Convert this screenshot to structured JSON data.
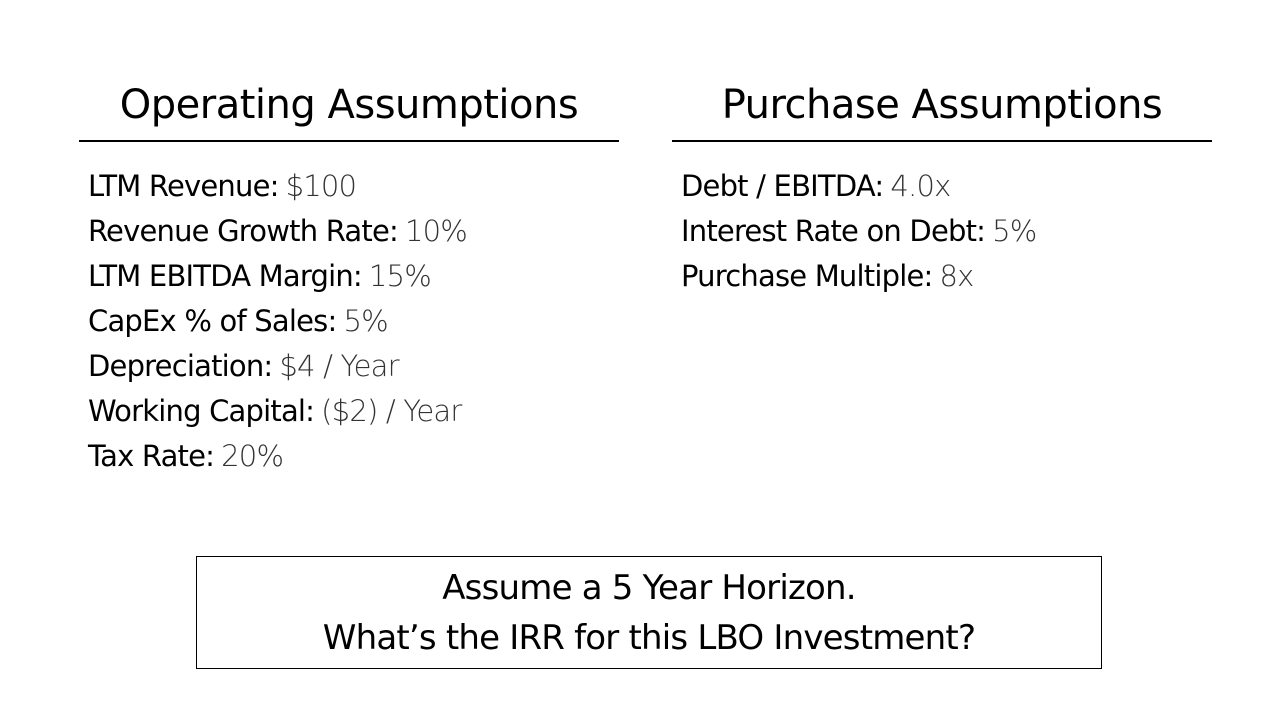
{
  "sections": [
    {
      "title": "Operating Assumptions",
      "items": [
        {
          "label": "LTM Revenue:",
          "value": "$100"
        },
        {
          "label": "Revenue Growth Rate:",
          "value": "10%"
        },
        {
          "label": "LTM EBITDA Margin:",
          "value": "15%"
        },
        {
          "label": "CapEx % of Sales:",
          "value": "5%"
        },
        {
          "label": "Depreciation:",
          "value": "$4 / Year"
        },
        {
          "label": "Working Capital:",
          "value": "($2) / Year"
        },
        {
          "label": "Tax Rate:",
          "value": "20%"
        }
      ]
    },
    {
      "title": "Purchase Assumptions",
      "items": [
        {
          "label": "Debt / EBITDA:",
          "value": "4.0x"
        },
        {
          "label": "Interest Rate on Debt:",
          "value": "5%"
        },
        {
          "label": "Purchase Multiple:",
          "value": "8x"
        }
      ]
    }
  ],
  "question": {
    "lines": [
      "Assume a 5 Year Horizon.",
      "What’s the IRR for this LBO Investment?"
    ]
  }
}
